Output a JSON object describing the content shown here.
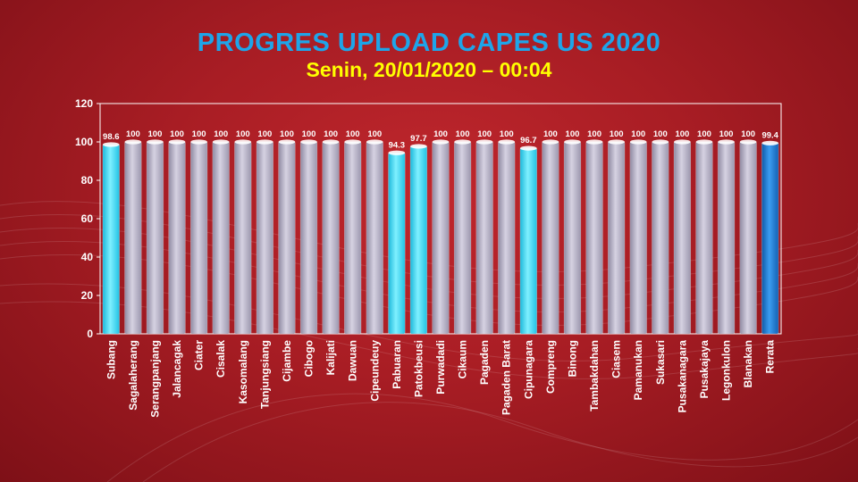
{
  "header": {
    "title": "PROGRES UPLOAD CAPES US 2020",
    "subtitle": "Senin, 20/01/2020 – 00:04"
  },
  "colors": {
    "complete_bar": "#bdb8cc",
    "incomplete_bar": "#35d4f5",
    "average_bar": "#1e78cc",
    "title": "#1ea5e9",
    "subtitle": "#ffff00"
  },
  "chart_data": {
    "type": "bar",
    "title": "PROGRES UPLOAD CAPES US 2020",
    "xlabel": "",
    "ylabel": "",
    "ylim": [
      0,
      120
    ],
    "yticks": [
      0,
      20,
      40,
      60,
      80,
      100,
      120
    ],
    "grid": false,
    "categories": [
      "Subang",
      "Sagalaherang",
      "Serangpanjang",
      "Jalancagak",
      "Ciater",
      "Cisalak",
      "Kasomalang",
      "Tanjungsiang",
      "Cijambe",
      "Cibogo",
      "Kalijati",
      "Dawuan",
      "Cipeundeuy",
      "Pabuaran",
      "Patokbeusi",
      "Purwadadi",
      "Cikaum",
      "Pagaden",
      "Pagaden Barat",
      "Cipunagara",
      "Compreng",
      "Binong",
      "Tambakdahan",
      "Ciasem",
      "Pamanukan",
      "Sukasari",
      "Pusakanagara",
      "Pusakajaya",
      "Legonkulon",
      "Blanakan",
      "Rerata"
    ],
    "values": [
      98.6,
      100,
      100,
      100,
      100,
      100,
      100,
      100,
      100,
      100,
      100,
      100,
      100,
      94.3,
      97.7,
      100,
      100,
      100,
      100,
      96.7,
      100,
      100,
      100,
      100,
      100,
      100,
      100,
      100,
      100,
      100,
      99.4
    ],
    "data_labels": [
      "98.6",
      "100",
      "100",
      "100",
      "100",
      "100",
      "100",
      "100",
      "100",
      "100",
      "100",
      "100",
      "100",
      "94.3",
      "97.7",
      "100",
      "100",
      "100",
      "100",
      "96.7",
      "100",
      "100",
      "100",
      "100",
      "100",
      "100",
      "100",
      "100",
      "100",
      "100",
      "99.4"
    ]
  }
}
